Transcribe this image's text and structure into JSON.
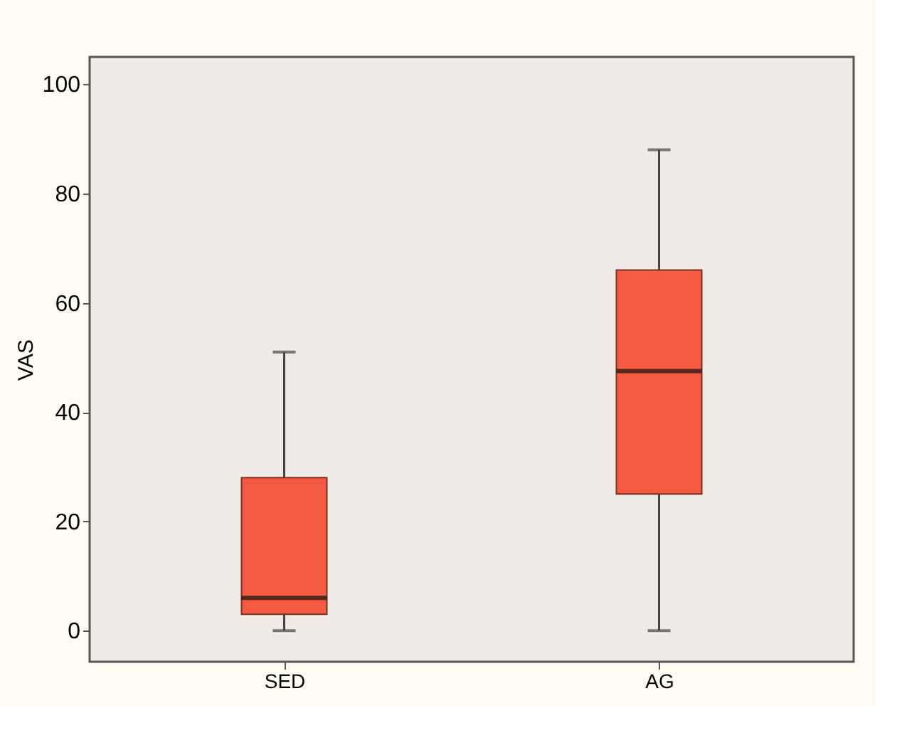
{
  "chart_data": {
    "type": "box",
    "ylabel": "VAS",
    "categories": [
      "SED",
      "AG"
    ],
    "boxes": [
      {
        "low": 0,
        "q1": 3,
        "median": 6,
        "q3": 28,
        "high": 51
      },
      {
        "low": 0,
        "q1": 25,
        "median": 47.5,
        "q3": 66,
        "high": 88
      }
    ],
    "color": "#f45a40",
    "ylim": [
      -5.7,
      105
    ],
    "yticks": [
      0,
      20,
      40,
      60,
      80,
      100
    ],
    "grid": false
  }
}
